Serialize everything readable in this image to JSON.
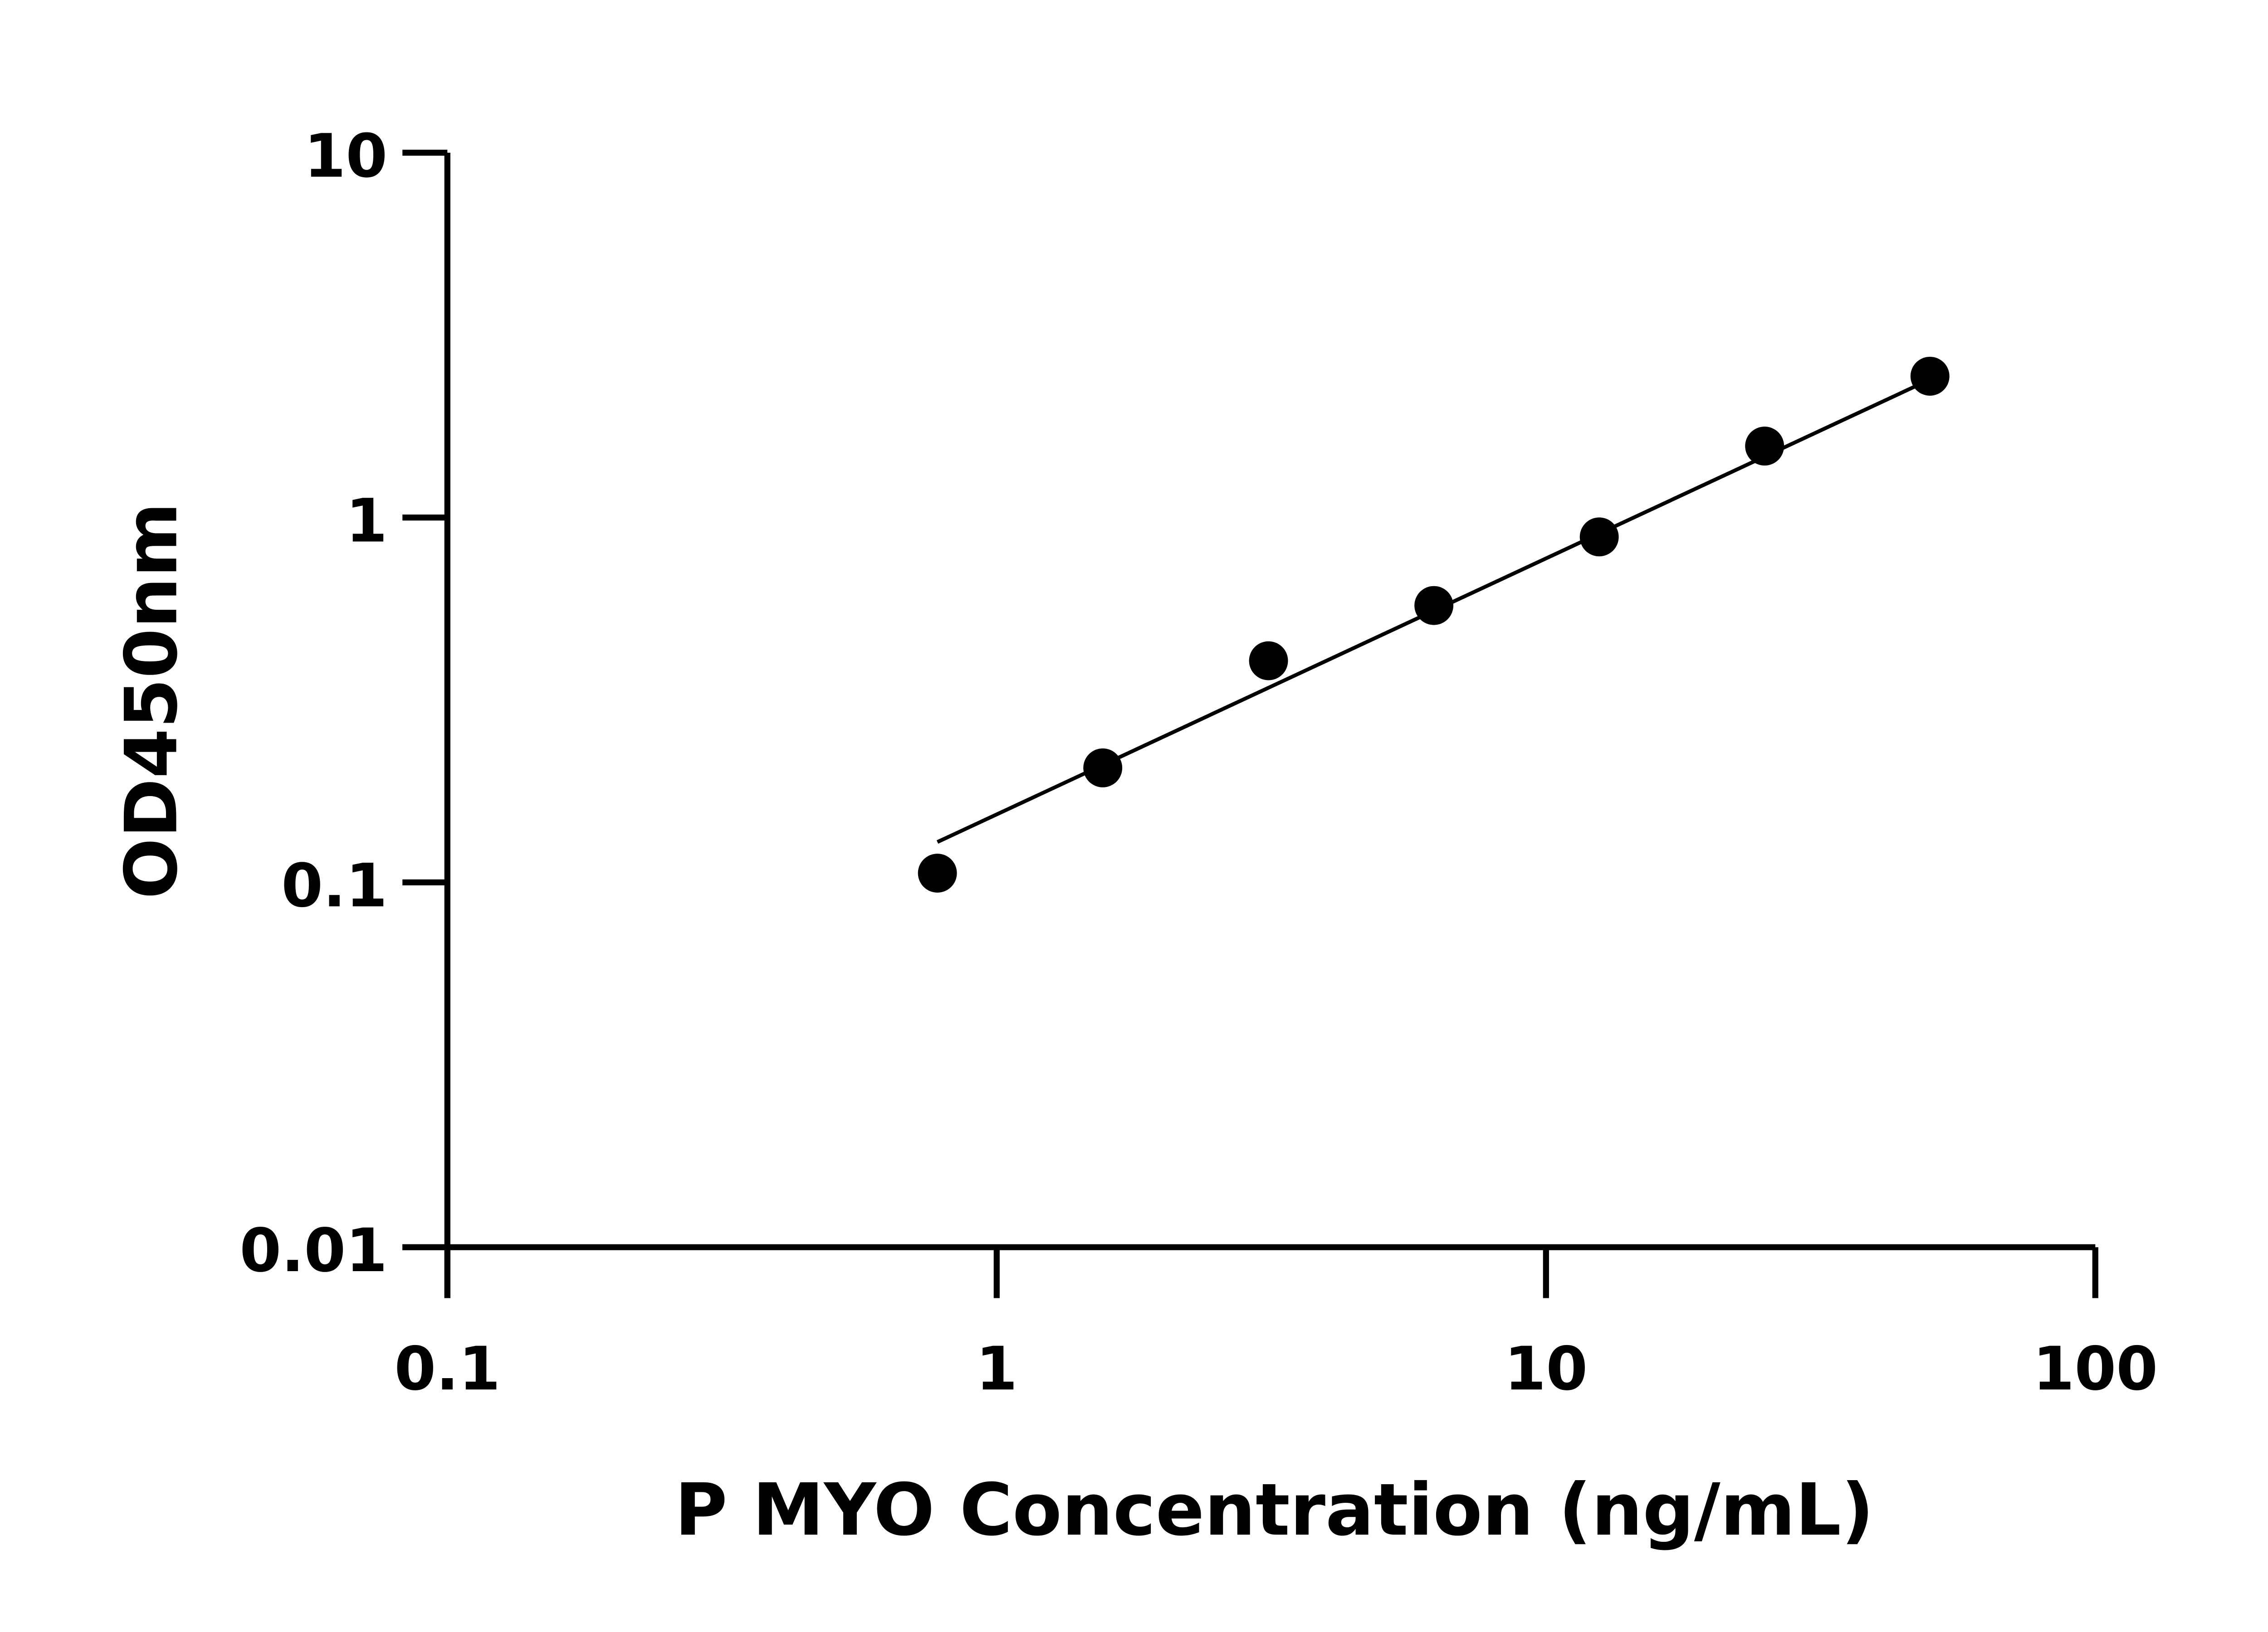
{
  "chart_data": {
    "type": "scatter",
    "title": "",
    "xlabel": "P MYO Concentration (ng/mL)",
    "ylabel": "OD450nm",
    "xscale": "log",
    "yscale": "log",
    "xlim": [
      0.1,
      100
    ],
    "ylim": [
      0.01,
      10
    ],
    "xticks": [
      "0.1",
      "1",
      "10",
      "100"
    ],
    "yticks": [
      "0.01",
      "0.1",
      "1",
      "10"
    ],
    "grid": false,
    "series": [
      {
        "x": [
          0.78,
          1.56,
          3.125,
          6.25,
          12.5,
          25,
          50
        ],
        "y": [
          0.106,
          0.206,
          0.405,
          0.574,
          0.885,
          1.57,
          2.44
        ],
        "marker": "filled-circle",
        "color": "#000000"
      }
    ],
    "fit_line": {
      "x": [
        0.78,
        50
      ],
      "y": [
        0.129,
        2.39
      ],
      "color": "#000000"
    }
  }
}
